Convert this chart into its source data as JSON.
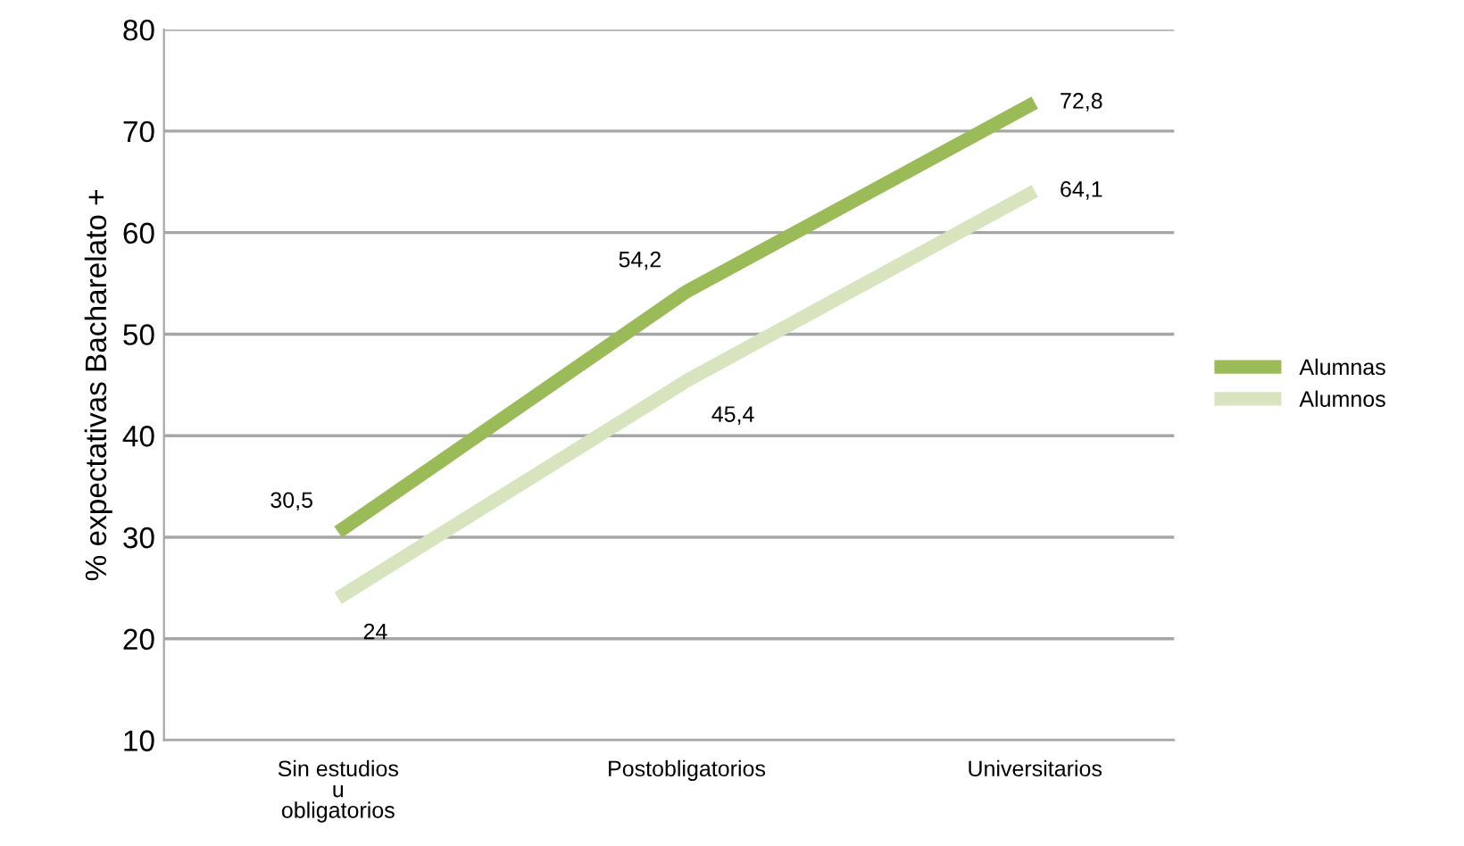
{
  "chart_data": {
    "type": "line",
    "ylabel": "% expectativas Bacharelato +",
    "categories": [
      "Sin estudios\nu\nobligatorios",
      "Postobligatorios",
      "Universitarios"
    ],
    "series": [
      {
        "name": "Alumnas",
        "color": "#9bbb59",
        "values": [
          30.5,
          54.2,
          72.8
        ],
        "value_labels": [
          "30,5",
          "54,2",
          "72,8"
        ]
      },
      {
        "name": "Alumnos",
        "color": "#d7e4bd",
        "values": [
          24,
          45.4,
          64.1
        ],
        "value_labels": [
          "24",
          "45,4",
          "64,1"
        ]
      }
    ],
    "ylim": [
      10,
      80
    ],
    "yticks": [
      10,
      20,
      30,
      40,
      50,
      60,
      70,
      80
    ],
    "grid": "y",
    "legend": "right",
    "marker": "none",
    "line_style": "solid"
  }
}
